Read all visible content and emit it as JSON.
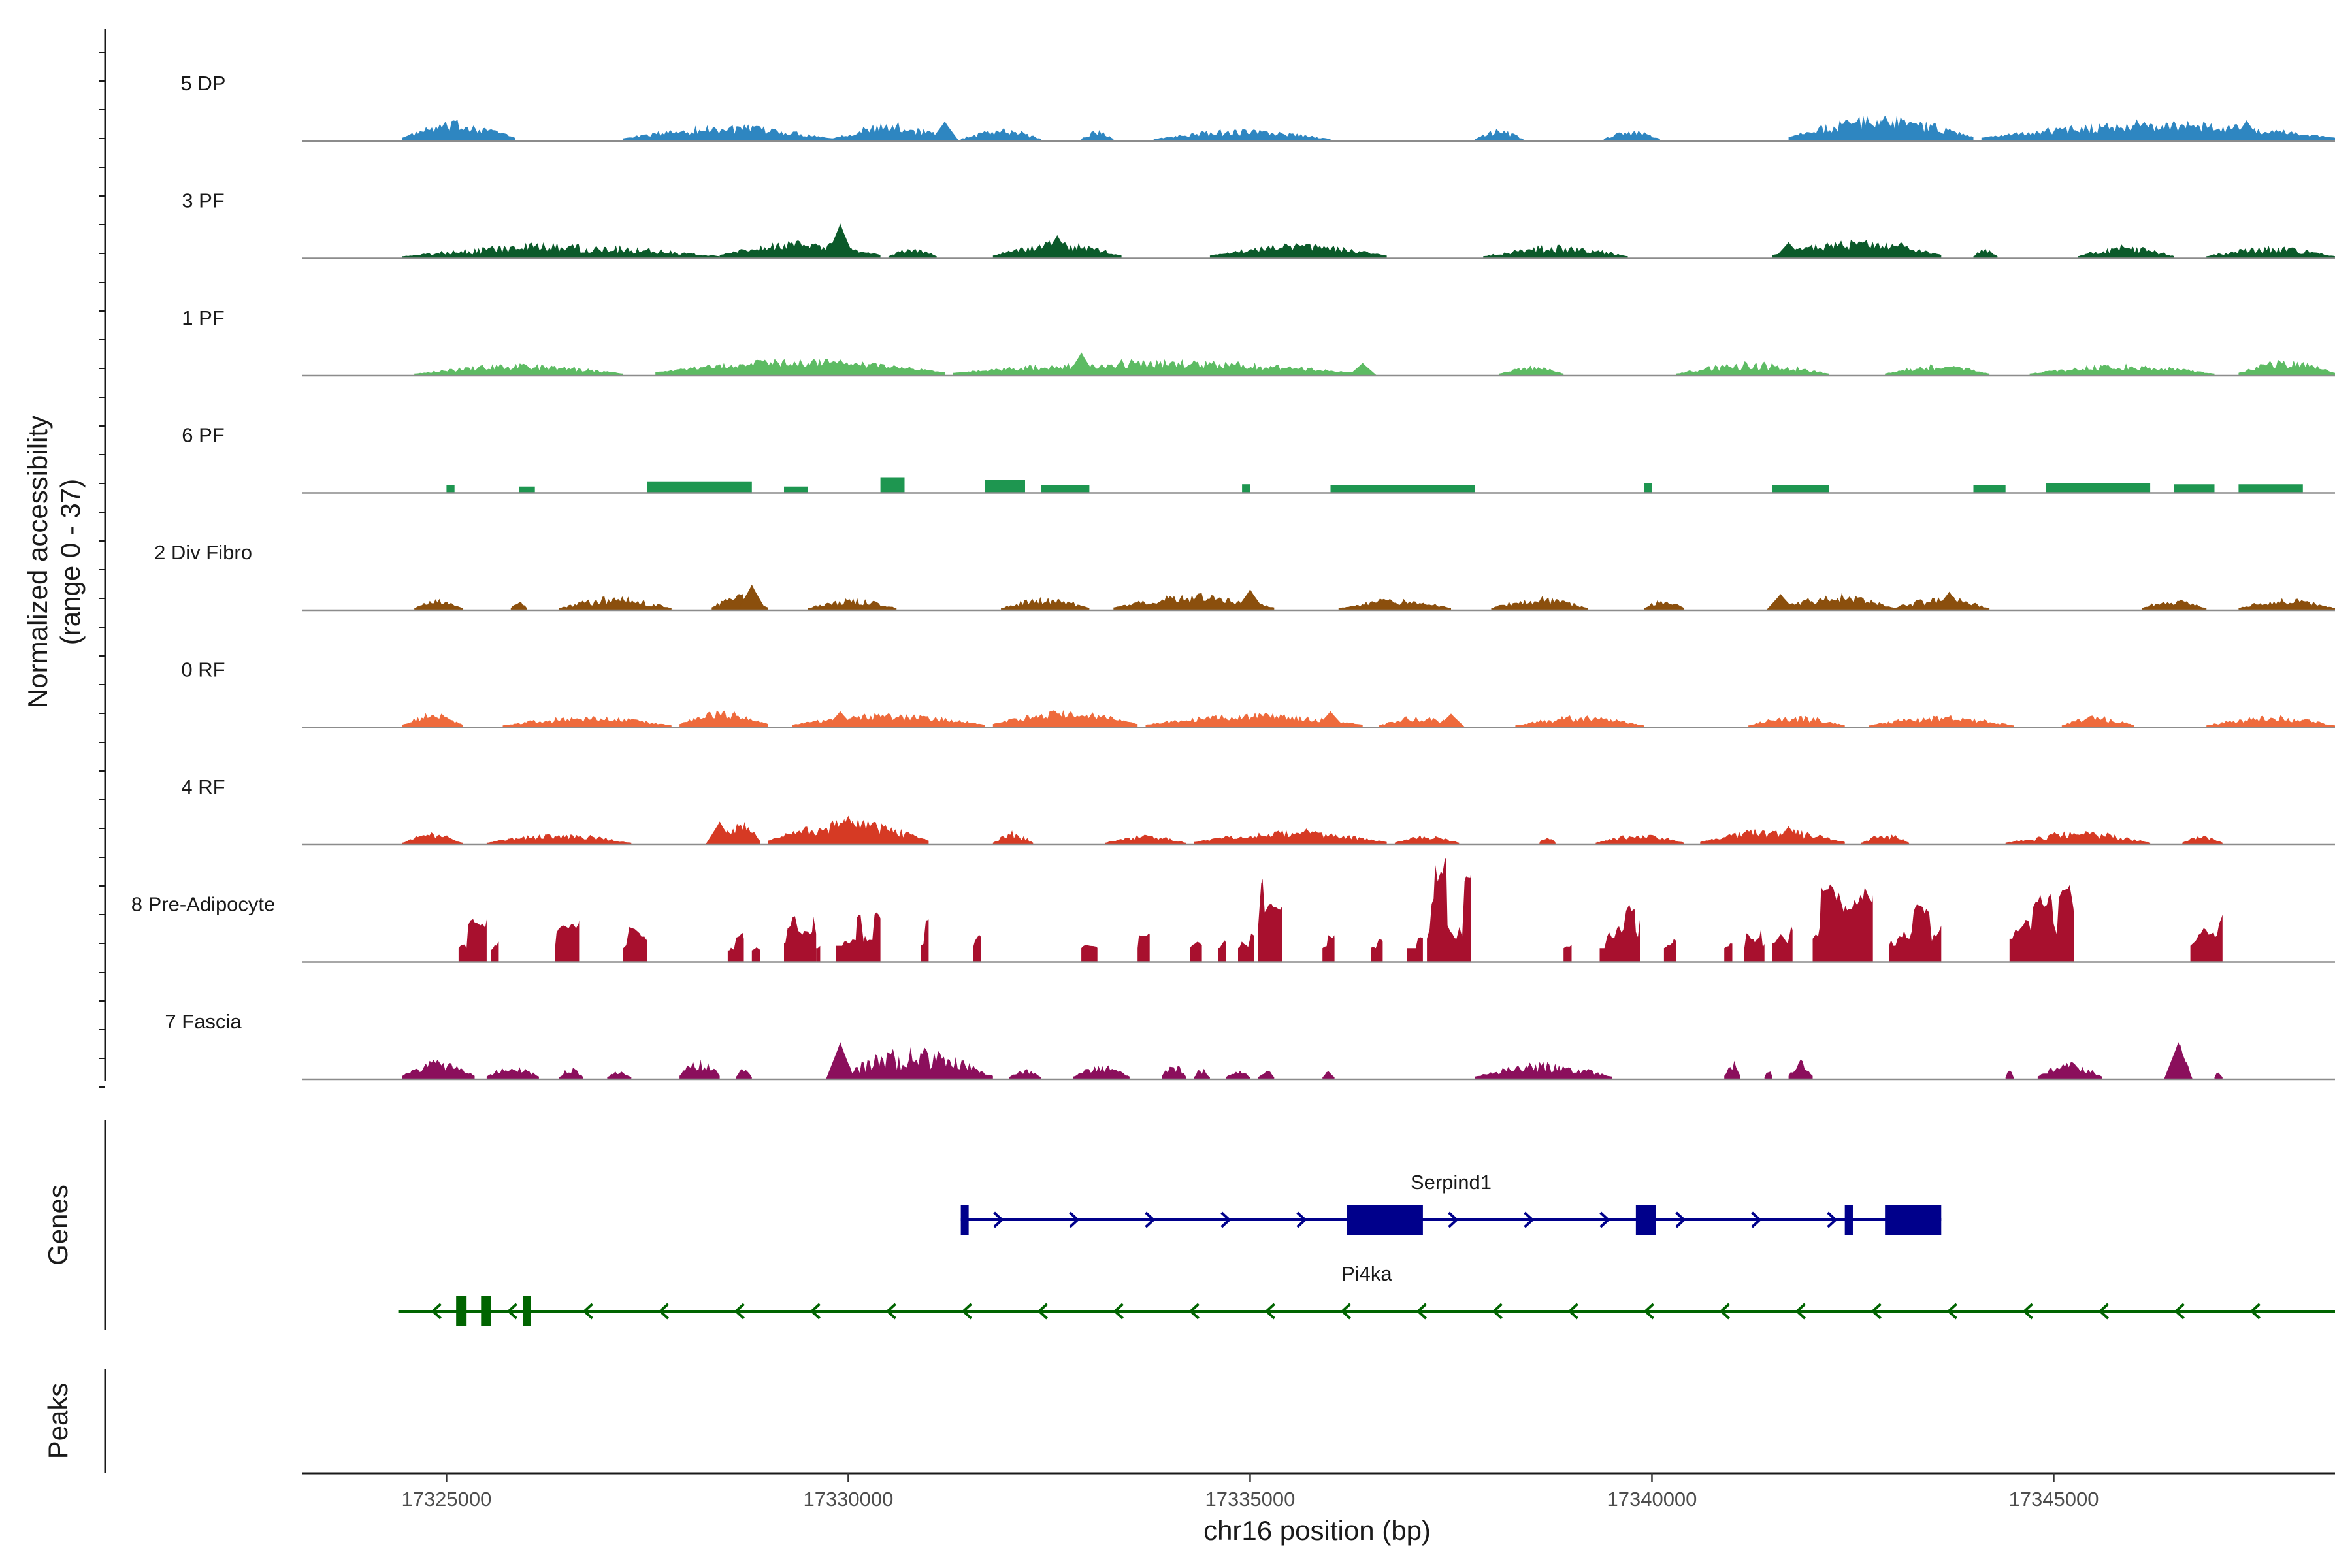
{
  "chart_data": {
    "type": "area",
    "title": "",
    "ylabel": "Normalized accessibility",
    "ylabel_sub": "(range 0 - 37)",
    "y_range": [
      0,
      37
    ],
    "xlabel": "chr16 position (bp)",
    "xlim": [
      17323200,
      17348500
    ],
    "x_ticks": [
      17325000,
      17330000,
      17335000,
      17340000,
      17345000
    ],
    "x_tick_labels": [
      "17325000",
      "17330000",
      "17335000",
      "17340000",
      "17345000"
    ],
    "series": [
      {
        "name": "5 DP",
        "color": "#2E86C1",
        "style": "smooth",
        "regions": [
          [
            17324450,
            17325850,
            5,
            17
          ],
          [
            17327200,
            17329800,
            4,
            14
          ],
          [
            17329800,
            17331300,
            4,
            16
          ],
          [
            17331400,
            17332400,
            3,
            12
          ],
          [
            17332900,
            17333300,
            3,
            9
          ],
          [
            17333800,
            17336000,
            3,
            10
          ],
          [
            17337800,
            17338400,
            3,
            10
          ],
          [
            17339400,
            17340100,
            3,
            9
          ],
          [
            17341700,
            17344000,
            6,
            22
          ],
          [
            17344100,
            17348500,
            5,
            18
          ]
        ],
        "peaks": [
          [
            17331200,
            17
          ],
          [
            17342900,
            22
          ],
          [
            17347400,
            18
          ]
        ]
      },
      {
        "name": "3 PF",
        "color": "#0B5A2A",
        "style": "smooth",
        "regions": [
          [
            17324450,
            17328400,
            3,
            14
          ],
          [
            17328400,
            17330400,
            5,
            14
          ],
          [
            17330500,
            17331100,
            3,
            9
          ],
          [
            17331800,
            17333400,
            4,
            15
          ],
          [
            17334500,
            17336700,
            4,
            12
          ],
          [
            17337900,
            17339700,
            3,
            12
          ],
          [
            17341500,
            17343600,
            5,
            15
          ],
          [
            17344000,
            17344300,
            3,
            8
          ],
          [
            17345300,
            17346500,
            3,
            12
          ],
          [
            17346900,
            17348500,
            3,
            10
          ]
        ],
        "peaks": [
          [
            17329900,
            30
          ],
          [
            17332600,
            20
          ],
          [
            17341700,
            14
          ],
          [
            17343100,
            14
          ]
        ]
      },
      {
        "name": "1 PF",
        "color": "#5DBB63",
        "style": "smooth",
        "regions": [
          [
            17324600,
            17327200,
            3,
            10
          ],
          [
            17327600,
            17331200,
            5,
            14
          ],
          [
            17331300,
            17336400,
            4,
            14
          ],
          [
            17338100,
            17338900,
            3,
            8
          ],
          [
            17340300,
            17342200,
            3,
            12
          ],
          [
            17342900,
            17344200,
            3,
            10
          ],
          [
            17344700,
            17347000,
            3,
            10
          ],
          [
            17347300,
            17348500,
            4,
            14
          ]
        ],
        "peaks": [
          [
            17329900,
            14
          ],
          [
            17332900,
            20
          ],
          [
            17336400,
            11
          ]
        ]
      },
      {
        "name": "6 PF",
        "color": "#1E9650",
        "style": "block",
        "regions": [
          [
            17325000,
            17325100,
            4,
            10
          ],
          [
            17325900,
            17326100,
            3,
            8
          ],
          [
            17327500,
            17328800,
            4,
            16
          ],
          [
            17329200,
            17329500,
            3,
            8
          ],
          [
            17330400,
            17330700,
            5,
            22
          ],
          [
            17331700,
            17332200,
            5,
            18
          ],
          [
            17332400,
            17333000,
            3,
            10
          ],
          [
            17334900,
            17335000,
            3,
            12
          ],
          [
            17336000,
            17337800,
            3,
            10
          ],
          [
            17339900,
            17340000,
            3,
            14
          ],
          [
            17341500,
            17342200,
            3,
            10
          ],
          [
            17344000,
            17344400,
            3,
            10
          ],
          [
            17344900,
            17346200,
            3,
            14
          ],
          [
            17346500,
            17347000,
            3,
            12
          ],
          [
            17347300,
            17348100,
            3,
            12
          ]
        ],
        "peaks": []
      },
      {
        "name": "2 Div Fibro",
        "color": "#8B4F0D",
        "style": "smooth",
        "regions": [
          [
            17324600,
            17325200,
            3,
            9
          ],
          [
            17325800,
            17326000,
            3,
            7
          ],
          [
            17326400,
            17327800,
            3,
            12
          ],
          [
            17328300,
            17329000,
            4,
            14
          ],
          [
            17329500,
            17330600,
            3,
            10
          ],
          [
            17331900,
            17333000,
            3,
            12
          ],
          [
            17333300,
            17335300,
            4,
            14
          ],
          [
            17336100,
            17337500,
            3,
            10
          ],
          [
            17338000,
            17339200,
            3,
            12
          ],
          [
            17339900,
            17340400,
            3,
            9
          ],
          [
            17341600,
            17343000,
            4,
            14
          ],
          [
            17343000,
            17344200,
            3,
            12
          ],
          [
            17346100,
            17346900,
            3,
            10
          ],
          [
            17347300,
            17348500,
            3,
            10
          ]
        ],
        "peaks": [
          [
            17328800,
            22
          ],
          [
            17335000,
            18
          ],
          [
            17341600,
            14
          ],
          [
            17343700,
            16
          ]
        ]
      },
      {
        "name": "0 RF",
        "color": "#EE6A3C",
        "style": "smooth",
        "regions": [
          [
            17324450,
            17325200,
            4,
            12
          ],
          [
            17325700,
            17327800,
            3,
            10
          ],
          [
            17327900,
            17329000,
            5,
            14
          ],
          [
            17329300,
            17331700,
            4,
            12
          ],
          [
            17331800,
            17333600,
            5,
            14
          ],
          [
            17333700,
            17336400,
            4,
            12
          ],
          [
            17336600,
            17337600,
            3,
            10
          ],
          [
            17338300,
            17339900,
            3,
            10
          ],
          [
            17341200,
            17342400,
            3,
            10
          ],
          [
            17342700,
            17344500,
            3,
            10
          ],
          [
            17345100,
            17346000,
            3,
            10
          ],
          [
            17346900,
            17348500,
            3,
            10
          ]
        ],
        "peaks": [
          [
            17329900,
            14
          ],
          [
            17336000,
            14
          ],
          [
            17337500,
            12
          ]
        ]
      },
      {
        "name": "4 RF",
        "color": "#D63A24",
        "style": "smooth",
        "regions": [
          [
            17324450,
            17325200,
            3,
            10
          ],
          [
            17325500,
            17327300,
            3,
            10
          ],
          [
            17328400,
            17328900,
            6,
            20
          ],
          [
            17329000,
            17331000,
            6,
            22
          ],
          [
            17331800,
            17332300,
            3,
            12
          ],
          [
            17333200,
            17334200,
            3,
            8
          ],
          [
            17334300,
            17336700,
            4,
            12
          ],
          [
            17336800,
            17337600,
            3,
            8
          ],
          [
            17338600,
            17338800,
            3,
            7
          ],
          [
            17339300,
            17340400,
            3,
            9
          ],
          [
            17340600,
            17342400,
            4,
            14
          ],
          [
            17342600,
            17343200,
            3,
            10
          ],
          [
            17344400,
            17346200,
            3,
            12
          ],
          [
            17346600,
            17347100,
            3,
            7
          ]
        ],
        "peaks": [
          [
            17328400,
            20
          ],
          [
            17330000,
            25
          ],
          [
            17335700,
            14
          ],
          [
            17341700,
            16
          ]
        ]
      },
      {
        "name": "8 Pre-Adipocyte",
        "color": "#A8102E",
        "style": "spiky",
        "regions": [
          [
            17325150,
            17325500,
            12,
            38
          ],
          [
            17325550,
            17325650,
            10,
            32
          ],
          [
            17326350,
            17326650,
            12,
            35
          ],
          [
            17327200,
            17327500,
            12,
            32
          ],
          [
            17328500,
            17328700,
            10,
            24
          ],
          [
            17328800,
            17328900,
            10,
            24
          ],
          [
            17329200,
            17329600,
            16,
            40
          ],
          [
            17329600,
            17329650,
            12,
            30
          ],
          [
            17329850,
            17330400,
            14,
            44
          ],
          [
            17330900,
            17331000,
            14,
            40
          ],
          [
            17331550,
            17331650,
            12,
            32
          ],
          [
            17332900,
            17333100,
            12,
            26
          ],
          [
            17333600,
            17333750,
            12,
            34
          ],
          [
            17334250,
            17334400,
            12,
            32
          ],
          [
            17334600,
            17334700,
            12,
            28
          ],
          [
            17334850,
            17335050,
            12,
            26
          ],
          [
            17335100,
            17335400,
            30,
            78
          ],
          [
            17335900,
            17336050,
            12,
            28
          ],
          [
            17336500,
            17336650,
            12,
            32
          ],
          [
            17336950,
            17337150,
            12,
            26
          ],
          [
            17337200,
            17337750,
            20,
            85
          ],
          [
            17338900,
            17339000,
            12,
            26
          ],
          [
            17339350,
            17339850,
            12,
            46
          ],
          [
            17340150,
            17340300,
            12,
            30
          ],
          [
            17340900,
            17341000,
            12,
            28
          ],
          [
            17341150,
            17341400,
            12,
            34
          ],
          [
            17341500,
            17341750,
            16,
            64
          ],
          [
            17342000,
            17342750,
            20,
            70
          ],
          [
            17342950,
            17343600,
            14,
            50
          ],
          [
            17344450,
            17345250,
            20,
            84
          ],
          [
            17346700,
            17347100,
            14,
            40
          ]
        ],
        "peaks": []
      },
      {
        "name": "7 Fascia",
        "color": "#8B0F5C",
        "style": "smooth",
        "regions": [
          [
            17324450,
            17325350,
            5,
            16
          ],
          [
            17325500,
            17326150,
            4,
            12
          ],
          [
            17326400,
            17326700,
            3,
            10
          ],
          [
            17327000,
            17327300,
            3,
            8
          ],
          [
            17327900,
            17328400,
            5,
            20
          ],
          [
            17328600,
            17328800,
            3,
            10
          ],
          [
            17329800,
            17331800,
            5,
            28
          ],
          [
            17332000,
            17332400,
            3,
            8
          ],
          [
            17332800,
            17333500,
            4,
            12
          ],
          [
            17333900,
            17334200,
            4,
            14
          ],
          [
            17334300,
            17334500,
            3,
            10
          ],
          [
            17334700,
            17335000,
            3,
            8
          ],
          [
            17335100,
            17335300,
            3,
            8
          ],
          [
            17335900,
            17336050,
            3,
            8
          ],
          [
            17337800,
            17339500,
            4,
            14
          ],
          [
            17340900,
            17341100,
            5,
            16
          ],
          [
            17341400,
            17341500,
            3,
            8
          ],
          [
            17341700,
            17342000,
            5,
            18
          ],
          [
            17344400,
            17344500,
            3,
            8
          ],
          [
            17344800,
            17345600,
            4,
            14
          ],
          [
            17346400,
            17346700,
            8,
            30
          ],
          [
            17347000,
            17347100,
            3,
            8
          ]
        ],
        "peaks": [
          [
            17329900,
            32
          ],
          [
            17346550,
            32
          ]
        ]
      }
    ],
    "genes": [
      {
        "name": "Serpind1",
        "strand": "+",
        "color": "#00008B",
        "start": 17331400,
        "end": 17343600,
        "exons": [
          [
            17331400,
            17331450
          ],
          [
            17336200,
            17337150
          ],
          [
            17339800,
            17340050
          ],
          [
            17342400,
            17342500
          ],
          [
            17342900,
            17343600
          ]
        ]
      },
      {
        "name": "Pi4ka",
        "strand": "-",
        "color": "#006400",
        "start": 17324400,
        "end": 17348500,
        "exons": [
          [
            17325120,
            17325250
          ],
          [
            17325430,
            17325550
          ],
          [
            17325950,
            17326050
          ]
        ]
      }
    ],
    "panels": {
      "genes_title": "Genes",
      "peaks_title": "Peaks"
    }
  }
}
